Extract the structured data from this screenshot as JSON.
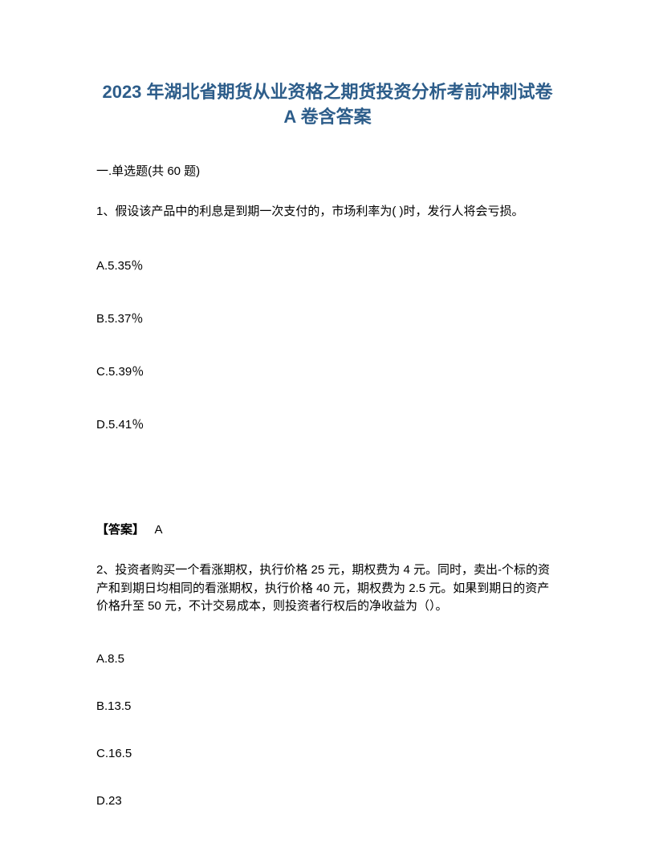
{
  "title": "2023 年湖北省期货从业资格之期货投资分析考前冲刺试卷 A 卷含答案",
  "section_header": "一.单选题(共 60 题)",
  "question1": {
    "text": "1、假设该产品中的利息是到期一次支付的，市场利率为( )时，发行人将会亏损。",
    "options": {
      "a": "A.5.35％",
      "b": "B.5.37％",
      "c": "C.5.39％",
      "d": "D.5.41％"
    },
    "answer_label": "【答案】",
    "answer_value": "A"
  },
  "question2": {
    "text": "2、投资者购买一个看涨期权，执行价格 25 元，期权费为 4 元。同时，卖出-个标的资产和到期日均相同的看涨期权，执行价格 40 元，期权费为 2.5 元。如果到期日的资产价格升至 50 元，不计交易成本，则投资者行权后的净收益为（）。",
    "options": {
      "a": "A.8.5",
      "b": "B.13.5",
      "c": "C.16.5",
      "d": "D.23"
    }
  },
  "colors": {
    "title_color": "#2d5d8a",
    "text_color": "#000000",
    "background_color": "#ffffff"
  },
  "typography": {
    "title_fontsize": 22,
    "body_fontsize": 15,
    "title_weight": "bold"
  }
}
